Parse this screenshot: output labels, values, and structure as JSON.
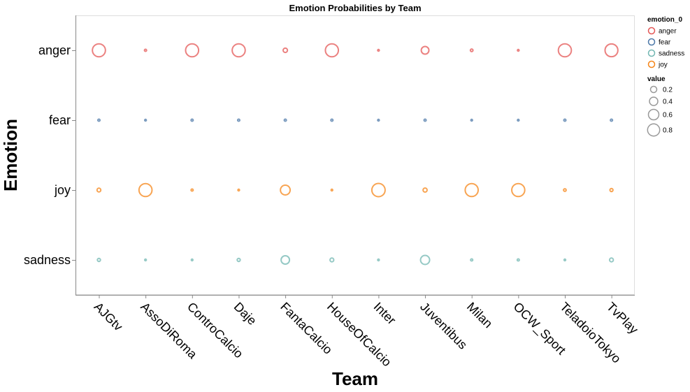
{
  "chart_data": {
    "type": "scatter",
    "title": "Emotion Probabilities by Team",
    "xlabel": "Team",
    "ylabel": "Emotion",
    "teams": [
      "AJGtv",
      "AssoDiRoma",
      "ControCalcio",
      "Daje",
      "FantaCalcio",
      "HouseOfCalcio",
      "Inter",
      "Juventibus",
      "Milan",
      "OCW_Sport",
      "TeladoioTokyo",
      "TvPlay"
    ],
    "emotions": [
      "anger",
      "fear",
      "joy",
      "sadness"
    ],
    "series": [
      {
        "name": "anger",
        "color": "#e45756",
        "values": [
          0.72,
          0.02,
          0.72,
          0.72,
          0.08,
          0.72,
          0.01,
          0.25,
          0.03,
          0.01,
          0.72,
          0.7
        ]
      },
      {
        "name": "fear",
        "color": "#4c78a8",
        "values": [
          0.02,
          0.01,
          0.02,
          0.02,
          0.02,
          0.02,
          0.01,
          0.02,
          0.01,
          0.01,
          0.02,
          0.02
        ]
      },
      {
        "name": "joy",
        "color": "#f58518",
        "values": [
          0.06,
          0.72,
          0.02,
          0.01,
          0.4,
          0.01,
          0.75,
          0.07,
          0.72,
          0.72,
          0.03,
          0.04
        ]
      },
      {
        "name": "sadness",
        "color": "#72b7b2",
        "values": [
          0.04,
          0.01,
          0.01,
          0.04,
          0.3,
          0.06,
          0.01,
          0.35,
          0.02,
          0.02,
          0.01,
          0.06
        ]
      }
    ],
    "legend": {
      "color_title": "emotion_0",
      "color_entries": [
        "anger",
        "fear",
        "sadness",
        "joy"
      ],
      "size_title": "value",
      "size_entries": [
        {
          "label": "0.2",
          "value": 0.2
        },
        {
          "label": "0.4",
          "value": 0.4
        },
        {
          "label": "0.6",
          "value": 0.6
        },
        {
          "label": "0.8",
          "value": 0.8
        }
      ]
    },
    "size_legend_color": "#999999",
    "legend_position": "right",
    "grid": false
  }
}
